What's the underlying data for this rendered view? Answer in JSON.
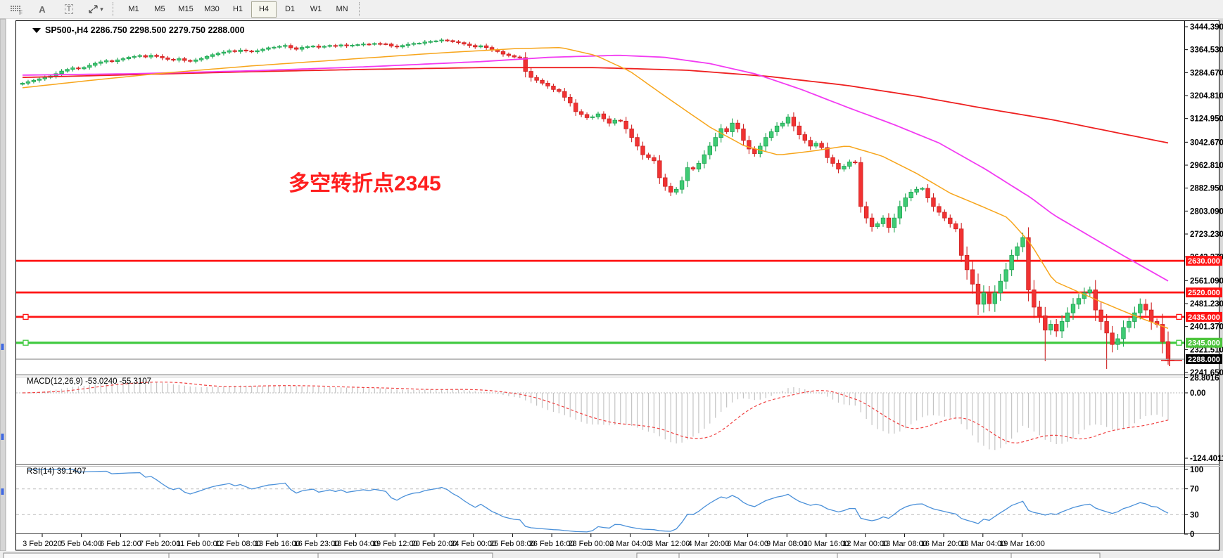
{
  "toolbar": {
    "icon_a": "A",
    "icon_t": "T",
    "timeframes": [
      {
        "label": "M1",
        "active": false
      },
      {
        "label": "M5",
        "active": false
      },
      {
        "label": "M15",
        "active": false
      },
      {
        "label": "M30",
        "active": false
      },
      {
        "label": "H1",
        "active": false
      },
      {
        "label": "H4",
        "active": true
      },
      {
        "label": "D1",
        "active": false
      },
      {
        "label": "W1",
        "active": false
      },
      {
        "label": "MN",
        "active": false
      }
    ]
  },
  "chart": {
    "title": "SP500-,H4  2286.750 2298.500 2279.750 2288.000",
    "symbol": "SP500-",
    "period": "H4",
    "ohlc": {
      "open": "2286.750",
      "high": "2298.500",
      "low": "2279.750",
      "close": "2288.000"
    },
    "annotation": "多空转折点2345"
  },
  "indicators": {
    "macd": {
      "label": "MACD(12,26,9) -53.0240 -55.3107",
      "params": "12,26,9",
      "value": "-53.0240",
      "signal": "-55.3107"
    },
    "rsi": {
      "label": "RSI(14) 39.1407",
      "params": "14",
      "value": "39.1407"
    }
  },
  "colors": {
    "up": "#3ecb74",
    "up_stroke": "#1fa351",
    "down": "#f13232",
    "down_stroke": "#ce2424",
    "ma_fast": "#f7a51b",
    "ma_mid": "#f23bf2",
    "ma_slow": "#ee2020",
    "level_red": "#ff1414",
    "level_green": "#3fca3f",
    "badge_green": "#4cc43c",
    "current_line": "#8e8e8e",
    "badge_black": "#000000",
    "macd_hist": "#c4c4c4",
    "macd_signal": "#f04040",
    "rsi_line": "#4a90d9",
    "annotation": "#ff1f1f"
  },
  "chart_data": {
    "type": "candlestick",
    "symbol": "SP500-",
    "timeframe": "H4",
    "open_first": 3244,
    "closes": [
      3248,
      3253,
      3258,
      3263,
      3268,
      3273,
      3281,
      3290,
      3296,
      3301,
      3298,
      3303,
      3310,
      3317,
      3322,
      3326,
      3323,
      3329,
      3333,
      3338,
      3341,
      3344,
      3339,
      3345,
      3341,
      3336,
      3331,
      3328,
      3333,
      3327,
      3324,
      3329,
      3334,
      3341,
      3347,
      3352,
      3356,
      3361,
      3358,
      3363,
      3360,
      3357,
      3361,
      3366,
      3371,
      3373,
      3376,
      3379,
      3371,
      3366,
      3372,
      3375,
      3377,
      3373,
      3376,
      3379,
      3377,
      3381,
      3378,
      3380,
      3382,
      3384,
      3383,
      3386,
      3385,
      3384,
      3377,
      3374,
      3379,
      3383,
      3386,
      3387,
      3391,
      3393,
      3395,
      3398,
      3396,
      3392,
      3389,
      3384,
      3379,
      3374,
      3378,
      3372,
      3364,
      3358,
      3349,
      3344,
      3339,
      3337,
      3289,
      3268,
      3258,
      3248,
      3238,
      3226,
      3219,
      3199,
      3179,
      3149,
      3139,
      3128,
      3131,
      3141,
      3124,
      3109,
      3119,
      3116,
      3089,
      3059,
      3029,
      2999,
      2989,
      2978,
      2919,
      2889,
      2869,
      2879,
      2909,
      2954,
      2949,
      2969,
      2999,
      3029,
      3059,
      3090,
      3079,
      3109,
      3089,
      3049,
      3019,
      3003,
      3029,
      3059,
      3079,
      3099,
      3109,
      3130,
      3099,
      3069,
      3049,
      3029,
      3039,
      3024,
      2989,
      2969,
      2949,
      2959,
      2974,
      2972,
      2819,
      2779,
      2749,
      2759,
      2779,
      2746,
      2779,
      2819,
      2849,
      2869,
      2879,
      2882,
      2849,
      2819,
      2799,
      2779,
      2759,
      2741,
      2649,
      2599,
      2549,
      2479,
      2519,
      2481,
      2519,
      2559,
      2599,
      2649,
      2679,
      2711,
      2529,
      2469,
      2439,
      2389,
      2409,
      2386,
      2419,
      2449,
      2479,
      2499,
      2519,
      2529,
      2459,
      2419,
      2379,
      2339,
      2359,
      2398,
      2419,
      2449,
      2479,
      2459,
      2419,
      2409,
      2349,
      2288
    ],
    "low_overrides": {
      "171": 2442,
      "183": 2281,
      "194": 2254,
      "205": 2269
    },
    "y_axis_ticks": [
      "3444.390",
      "3364.530",
      "3284.670",
      "3204.810",
      "3124.950",
      "3042.670",
      "2962.810",
      "2882.950",
      "2803.090",
      "2723.230",
      "2643.370",
      "2561.090",
      "2481.230",
      "2401.370",
      "2321.510",
      "2241.650"
    ],
    "price_range": {
      "top": 3444.39,
      "bottom": 2241.65
    },
    "levels": [
      {
        "price": 2630,
        "label": "2630.000",
        "color": "red",
        "handles": false
      },
      {
        "price": 2520,
        "label": "2520.000",
        "color": "red",
        "handles": false
      },
      {
        "price": 2435,
        "label": "2435.000",
        "color": "red",
        "handles": true
      },
      {
        "price": 2345,
        "label": "2345.000",
        "color": "green",
        "handles": true
      }
    ],
    "current_price": {
      "price": 2288,
      "label": "2288.000"
    },
    "moving_averages": [
      {
        "name": "ma-slow-red",
        "color_key": "ma_slow",
        "width": 1.8,
        "anchors": [
          [
            0,
            3268
          ],
          [
            0.1,
            3278
          ],
          [
            0.2,
            3288
          ],
          [
            0.3,
            3296
          ],
          [
            0.4,
            3302
          ],
          [
            0.5,
            3302
          ],
          [
            0.58,
            3293
          ],
          [
            0.65,
            3272
          ],
          [
            0.72,
            3240
          ],
          [
            0.78,
            3203
          ],
          [
            0.84,
            3160
          ],
          [
            0.9,
            3120
          ],
          [
            0.95,
            3080
          ],
          [
            1,
            3040
          ]
        ]
      },
      {
        "name": "ma-mid-magenta",
        "color_key": "ma_mid",
        "width": 1.8,
        "anchors": [
          [
            0,
            3276
          ],
          [
            0.1,
            3281
          ],
          [
            0.2,
            3291
          ],
          [
            0.3,
            3305
          ],
          [
            0.4,
            3323
          ],
          [
            0.46,
            3338
          ],
          [
            0.52,
            3345
          ],
          [
            0.56,
            3338
          ],
          [
            0.6,
            3316
          ],
          [
            0.64,
            3280
          ],
          [
            0.68,
            3226
          ],
          [
            0.72,
            3164
          ],
          [
            0.76,
            3105
          ],
          [
            0.8,
            3040
          ],
          [
            0.84,
            2950
          ],
          [
            0.88,
            2850
          ],
          [
            0.9,
            2790
          ],
          [
            0.93,
            2720
          ],
          [
            0.96,
            2650
          ],
          [
            1,
            2560
          ]
        ]
      },
      {
        "name": "ma-fast-orange",
        "color_key": "ma_fast",
        "width": 1.5,
        "anchors": [
          [
            0,
            3232
          ],
          [
            0.06,
            3258
          ],
          [
            0.12,
            3282
          ],
          [
            0.2,
            3308
          ],
          [
            0.28,
            3330
          ],
          [
            0.36,
            3352
          ],
          [
            0.43,
            3368
          ],
          [
            0.47,
            3372
          ],
          [
            0.5,
            3345
          ],
          [
            0.53,
            3290
          ],
          [
            0.56,
            3205
          ],
          [
            0.6,
            3095
          ],
          [
            0.63,
            3030
          ],
          [
            0.66,
            2998
          ],
          [
            0.69,
            3012
          ],
          [
            0.72,
            3030
          ],
          [
            0.75,
            2995
          ],
          [
            0.78,
            2935
          ],
          [
            0.81,
            2865
          ],
          [
            0.84,
            2815
          ],
          [
            0.86,
            2780
          ],
          [
            0.88,
            2690
          ],
          [
            0.9,
            2560
          ],
          [
            0.94,
            2490
          ],
          [
            0.97,
            2440
          ],
          [
            1,
            2395
          ]
        ]
      }
    ],
    "macd_axis": [
      {
        "v": 28.8016,
        "label": "28.8016"
      },
      {
        "v": 0,
        "label": "0.00"
      },
      {
        "v": -124.4011,
        "label": "-124.4011"
      }
    ],
    "rsi_axis": [
      {
        "v": 100,
        "label": "100",
        "dashed": false
      },
      {
        "v": 70,
        "label": "70",
        "dashed": true
      },
      {
        "v": 30,
        "label": "30",
        "dashed": true
      },
      {
        "v": 0,
        "label": "0",
        "dashed": false
      }
    ],
    "x_axis_labels": [
      "3 Feb 2020",
      "5 Feb 04:00",
      "6 Feb 12:00",
      "7 Feb 20:00",
      "11 Feb 00:00",
      "12 Feb 08:00",
      "13 Feb 16:00",
      "16 Feb 23:00",
      "18 Feb 04:00",
      "19 Feb 12:00",
      "20 Feb 20:00",
      "24 Feb 00:00",
      "25 Feb 08:00",
      "26 Feb 16:00",
      "28 Feb 00:00",
      "2 Mar 04:00",
      "3 Mar 12:00",
      "4 Mar 20:00",
      "6 Mar 04:00",
      "9 Mar 08:00",
      "10 Mar 16:00",
      "12 Mar 00:00",
      "13 Mar 08:00",
      "16 Mar 20:00",
      "18 Mar 04:00",
      "19 Mar 16:00"
    ]
  }
}
